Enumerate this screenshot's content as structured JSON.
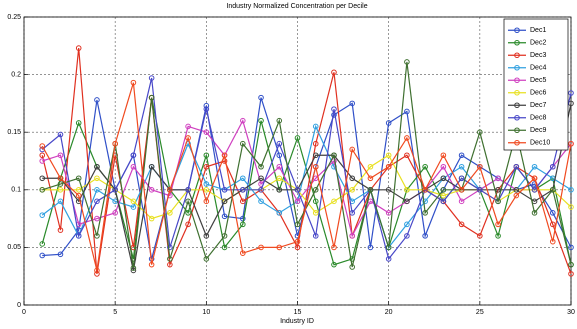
{
  "chart_data": {
    "type": "line",
    "title": "Industry Normalized Concentration per Decile",
    "x_label": "Industry ID",
    "x": [
      1,
      2,
      3,
      4,
      5,
      6,
      7,
      8,
      9,
      10,
      11,
      12,
      13,
      14,
      15,
      16,
      17,
      18,
      19,
      20,
      21,
      22,
      23,
      24,
      25,
      26,
      27,
      28,
      29,
      30
    ],
    "xlim": [
      0,
      30
    ],
    "xticks": [
      0,
      5,
      10,
      15,
      20,
      25,
      30
    ],
    "ylim": [
      0,
      0.25
    ],
    "yticks": [
      0,
      0.05,
      0.1,
      0.15,
      0.2,
      0.25
    ],
    "grid": true,
    "legend": "top-right",
    "series": [
      {
        "name": "Dec1",
        "color": "#3050c8",
        "values": [
          0.043,
          0.044,
          0.065,
          0.178,
          0.1,
          0.13,
          0.04,
          0.1,
          0.1,
          0.173,
          0.077,
          0.075,
          0.18,
          0.13,
          0.06,
          0.12,
          0.165,
          0.175,
          0.05,
          0.158,
          0.168,
          0.06,
          0.1,
          0.13,
          0.12,
          0.11,
          0.1,
          0.105,
          0.08,
          0.05
        ]
      },
      {
        "name": "Dec2",
        "color": "#2a8a2a",
        "values": [
          0.053,
          0.11,
          0.158,
          0.12,
          0.1,
          0.04,
          0.18,
          0.1,
          0.08,
          0.13,
          0.05,
          0.07,
          0.16,
          0.1,
          0.145,
          0.09,
          0.035,
          0.04,
          0.1,
          0.05,
          0.1,
          0.12,
          0.09,
          0.11,
          0.1,
          0.06,
          0.12,
          0.1,
          0.11,
          0.035
        ]
      },
      {
        "name": "Dec3",
        "color": "#e03020",
        "values": [
          0.13,
          0.065,
          0.223,
          0.027,
          0.13,
          0.05,
          0.18,
          0.035,
          0.07,
          0.12,
          0.125,
          0.09,
          0.1,
          0.08,
          0.05,
          0.14,
          0.202,
          0.06,
          0.1,
          0.12,
          0.13,
          0.1,
          0.09,
          0.07,
          0.06,
          0.1,
          0.12,
          0.11,
          0.07,
          0.027
        ]
      },
      {
        "name": "Dec4",
        "color": "#30a0e0",
        "values": [
          0.078,
          0.09,
          0.06,
          0.1,
          0.09,
          0.085,
          0.12,
          0.1,
          0.14,
          0.105,
          0.1,
          0.11,
          0.09,
          0.08,
          0.09,
          0.155,
          0.12,
          0.09,
          0.1,
          0.05,
          0.07,
          0.09,
          0.11,
          0.12,
          0.1,
          0.11,
          0.1,
          0.12,
          0.11,
          0.1
        ]
      },
      {
        "name": "Dec5",
        "color": "#d040c0",
        "values": [
          0.125,
          0.13,
          0.07,
          0.075,
          0.08,
          0.12,
          0.1,
          0.095,
          0.155,
          0.15,
          0.13,
          0.16,
          0.105,
          0.12,
          0.09,
          0.11,
          0.125,
          0.06,
          0.09,
          0.08,
          0.09,
          0.1,
          0.12,
          0.09,
          0.1,
          0.11,
          0.1,
          0.1,
          0.12,
          0.14
        ]
      },
      {
        "name": "Dec6",
        "color": "#e8e020",
        "values": [
          0.1,
          0.1,
          0.1,
          0.11,
          0.1,
          0.09,
          0.075,
          0.08,
          0.1,
          0.1,
          0.09,
          0.1,
          0.1,
          0.11,
          0.1,
          0.08,
          0.09,
          0.1,
          0.12,
          0.13,
          0.1,
          0.1,
          0.095,
          0.1,
          0.1,
          0.09,
          0.1,
          0.1,
          0.1,
          0.085
        ]
      },
      {
        "name": "Dec7",
        "color": "#404040",
        "values": [
          0.11,
          0.11,
          0.09,
          0.12,
          0.1,
          0.03,
          0.12,
          0.1,
          0.1,
          0.06,
          0.09,
          0.1,
          0.11,
          0.1,
          0.1,
          0.13,
          0.13,
          0.11,
          0.1,
          0.1,
          0.09,
          0.1,
          0.11,
          0.1,
          0.1,
          0.1,
          0.1,
          0.09,
          0.1,
          0.175
        ]
      },
      {
        "name": "Dec8",
        "color": "#4848c8",
        "values": [
          0.135,
          0.148,
          0.06,
          0.09,
          0.1,
          0.13,
          0.197,
          0.05,
          0.1,
          0.17,
          0.1,
          0.1,
          0.1,
          0.14,
          0.1,
          0.06,
          0.17,
          0.08,
          0.1,
          0.04,
          0.06,
          0.1,
          0.09,
          0.11,
          0.1,
          0.09,
          0.12,
          0.1,
          0.12,
          0.184
        ]
      },
      {
        "name": "Dec9",
        "color": "#3f7030",
        "values": [
          0.1,
          0.105,
          0.11,
          0.06,
          0.14,
          0.032,
          0.18,
          0.04,
          0.09,
          0.04,
          0.06,
          0.14,
          0.12,
          0.16,
          0.07,
          0.1,
          0.13,
          0.033,
          0.1,
          0.05,
          0.211,
          0.08,
          0.1,
          0.1,
          0.15,
          0.09,
          0.15,
          0.08,
          0.1,
          0.035
        ]
      },
      {
        "name": "Dec10",
        "color": "#f04a20",
        "values": [
          0.138,
          0.11,
          0.095,
          0.03,
          0.14,
          0.193,
          0.035,
          0.1,
          0.145,
          0.09,
          0.13,
          0.045,
          0.05,
          0.05,
          0.055,
          0.12,
          0.05,
          0.135,
          0.11,
          0.12,
          0.145,
          0.1,
          0.13,
          0.1,
          0.12,
          0.07,
          0.095,
          0.11,
          0.055,
          0.14
        ]
      }
    ]
  }
}
